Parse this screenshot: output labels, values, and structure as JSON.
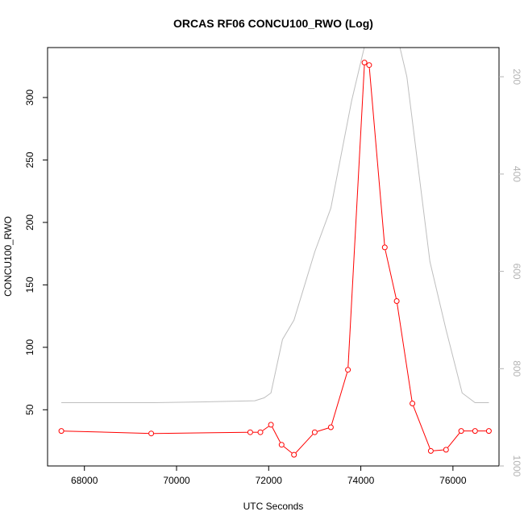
{
  "chart_data": {
    "type": "line",
    "title": "ORCAS RF06 CONCU100_RWO (Log)",
    "xlabel": "UTC Seconds",
    "ylabel": "CONCU100_RWO",
    "xlim": [
      67200,
      77000
    ],
    "ylim": [
      5,
      340
    ],
    "y2lim": [
      1000,
      140
    ],
    "x_ticks": [
      "68000",
      "70000",
      "72000",
      "74000",
      "76000"
    ],
    "y_ticks": [
      "50",
      "100",
      "150",
      "200",
      "250",
      "300"
    ],
    "y2_ticks": [
      "200",
      "400",
      "600",
      "800",
      "1000"
    ],
    "series": [
      {
        "color": "#ff0000",
        "axis": "left",
        "marker": "open-circle",
        "x": [
          67500,
          69450,
          71600,
          71820,
          72050,
          72280,
          72550,
          73000,
          73350,
          73720,
          74080,
          74180,
          74520,
          74780,
          75120,
          75520,
          75850,
          76180,
          76480,
          76780
        ],
        "y": [
          33,
          31,
          32,
          32,
          38,
          22,
          14,
          32,
          36,
          82,
          328,
          326,
          180,
          137,
          55,
          17,
          18,
          33,
          33,
          33
        ]
      },
      {
        "color": "#bebebe",
        "axis": "right",
        "x": [
          67500,
          69500,
          70800,
          71700,
          71900,
          72050,
          72300,
          72550,
          73000,
          73350,
          73800,
          74150,
          74500,
          74700,
          75000,
          75500,
          75850,
          76200,
          76480,
          76780
        ],
        "y": [
          870,
          870,
          868,
          866,
          860,
          850,
          740,
          700,
          560,
          470,
          250,
          110,
          60,
          80,
          200,
          580,
          720,
          850,
          870,
          870
        ]
      }
    ]
  }
}
